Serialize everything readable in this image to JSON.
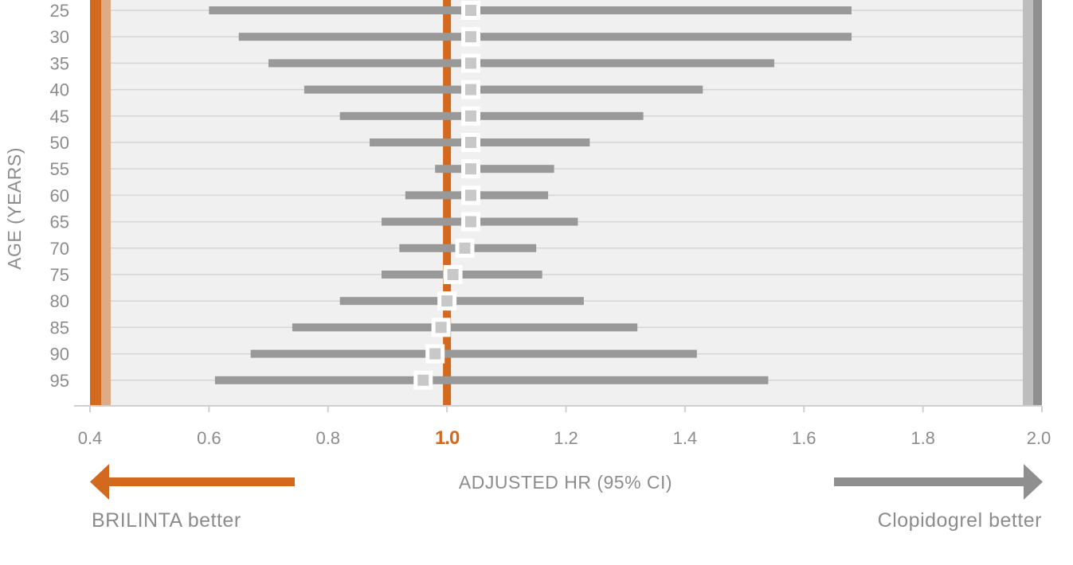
{
  "chart_data": {
    "type": "forest",
    "title": "",
    "xlabel": "ADJUSTED HR (95% CI)",
    "ylabel": "AGE (YEARS)",
    "xlim": [
      0.4,
      2.0
    ],
    "x_ticks": [
      "0.4",
      "0.6",
      "0.8",
      "1.0",
      "1.2",
      "1.4",
      "1.6",
      "1.8",
      "2.0"
    ],
    "x_tick_values": [
      0.4,
      0.6,
      0.8,
      1.0,
      1.2,
      1.4,
      1.6,
      1.8,
      2.0
    ],
    "reference_line": 1.0,
    "reference_label": "1.0",
    "grid": true,
    "rows": [
      {
        "age": "25",
        "hr": 1.04,
        "lower": 0.6,
        "upper": 1.68
      },
      {
        "age": "30",
        "hr": 1.04,
        "lower": 0.65,
        "upper": 1.68
      },
      {
        "age": "35",
        "hr": 1.04,
        "lower": 0.7,
        "upper": 1.55
      },
      {
        "age": "40",
        "hr": 1.04,
        "lower": 0.76,
        "upper": 1.43
      },
      {
        "age": "45",
        "hr": 1.04,
        "lower": 0.82,
        "upper": 1.33
      },
      {
        "age": "50",
        "hr": 1.04,
        "lower": 0.87,
        "upper": 1.24
      },
      {
        "age": "55",
        "hr": 1.04,
        "lower": 0.98,
        "upper": 1.18
      },
      {
        "age": "60",
        "hr": 1.04,
        "lower": 0.93,
        "upper": 1.17
      },
      {
        "age": "65",
        "hr": 1.04,
        "lower": 0.89,
        "upper": 1.22
      },
      {
        "age": "70",
        "hr": 1.03,
        "lower": 0.92,
        "upper": 1.15
      },
      {
        "age": "75",
        "hr": 1.01,
        "lower": 0.89,
        "upper": 1.16
      },
      {
        "age": "80",
        "hr": 1.0,
        "lower": 0.82,
        "upper": 1.23
      },
      {
        "age": "85",
        "hr": 0.99,
        "lower": 0.74,
        "upper": 1.32
      },
      {
        "age": "90",
        "hr": 0.98,
        "lower": 0.67,
        "upper": 1.42
      },
      {
        "age": "95",
        "hr": 0.96,
        "lower": 0.61,
        "upper": 1.54
      }
    ],
    "left_label": "BRILINTA better",
    "right_label": "Clopidogrel better",
    "colors": {
      "brilinta": "#d2691e",
      "brilinta_light": "#ddab85",
      "clopidogrel": "#8f8f8f",
      "clopidogrel_light": "#bdbdbd",
      "ci_bar": "#999999",
      "marker_fill": "#c8c8c8",
      "plot_bg": "#f0f0f0",
      "gridline": "#d6d6d6",
      "text": "#8c8c8c"
    }
  }
}
